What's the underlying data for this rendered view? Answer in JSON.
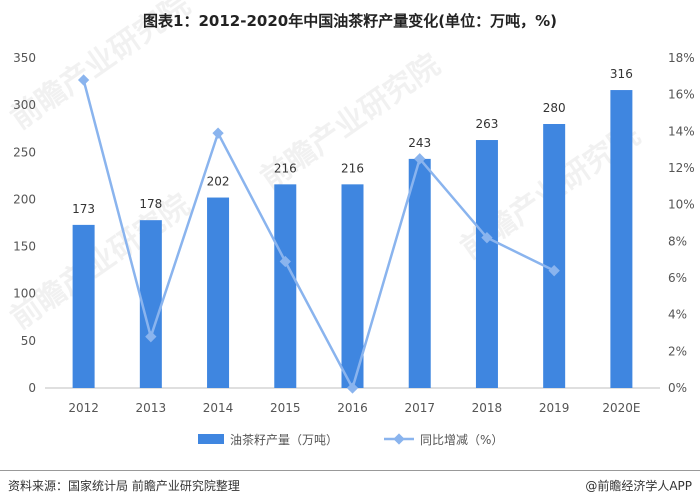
{
  "chart_data": {
    "type": "bar",
    "title": "图表1：2012-2020年中国油茶籽产量变化(单位：万吨，%)",
    "categories": [
      "2012",
      "2013",
      "2014",
      "2015",
      "2016",
      "2017",
      "2018",
      "2019",
      "2020E"
    ],
    "series": [
      {
        "name": "油茶籽产量（万吨）",
        "type": "bar",
        "axis": "left",
        "color": "#3f86e0",
        "values": [
          173,
          178,
          202,
          216,
          216,
          243,
          263,
          280,
          316
        ],
        "labels": [
          "173",
          "178",
          "202",
          "216",
          "216",
          "243",
          "263",
          "280",
          "316"
        ]
      },
      {
        "name": "同比增减（%）",
        "type": "line",
        "axis": "right",
        "color": "#8ab4ee",
        "values": [
          16.8,
          2.8,
          13.9,
          6.9,
          0.0,
          12.5,
          8.2,
          6.4,
          null
        ]
      }
    ],
    "ylim_left": [
      0,
      350
    ],
    "left_ticks": [
      "0",
      "50",
      "100",
      "150",
      "200",
      "250",
      "300",
      "350"
    ],
    "ylim_right": [
      0,
      18
    ],
    "right_ticks": [
      "0%",
      "2%",
      "4%",
      "6%",
      "8%",
      "10%",
      "12%",
      "14%",
      "16%",
      "18%"
    ],
    "grid": false,
    "legend_position": "bottom"
  },
  "footer": {
    "source": "资料来源：国家统计局 前瞻产业研究院整理",
    "brand": "@前瞻经济学人APP"
  },
  "watermark": {
    "text": "前瞻产业研究院"
  }
}
